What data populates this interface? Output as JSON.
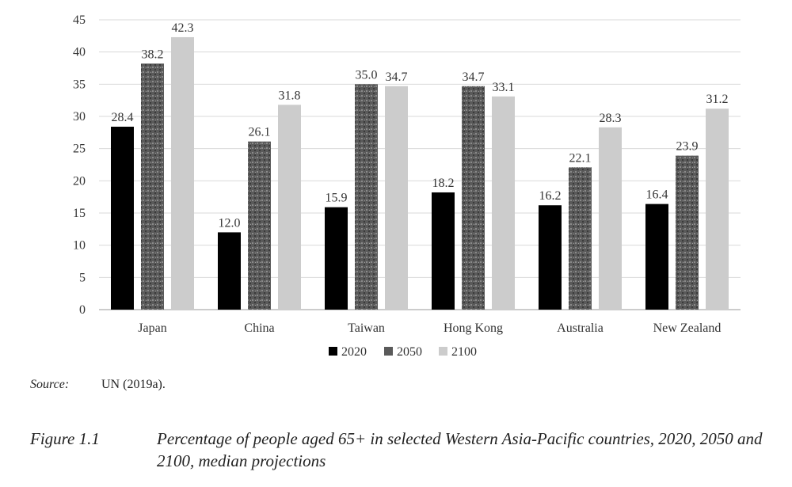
{
  "chart_data": {
    "type": "bar",
    "categories": [
      "Japan",
      "China",
      "Taiwan",
      "Hong Kong",
      "Australia",
      "New Zealand"
    ],
    "series": [
      {
        "name": "2020",
        "values": [
          28.4,
          12.0,
          15.9,
          18.2,
          16.2,
          16.4
        ],
        "labels": [
          "28.4",
          "12.0",
          "15.9",
          "18.2",
          "16.2",
          "16.4"
        ],
        "color": "#000000"
      },
      {
        "name": "2050",
        "values": [
          38.2,
          26.1,
          35.0,
          34.7,
          22.1,
          23.9
        ],
        "labels": [
          "38.2",
          "26.1",
          "35.0",
          "34.7",
          "22.1",
          "23.9"
        ],
        "color": "#5a5a5a"
      },
      {
        "name": "2100",
        "values": [
          42.3,
          31.8,
          34.7,
          33.1,
          28.3,
          31.2
        ],
        "labels": [
          "42.3",
          "31.8",
          "34.7",
          "33.1",
          "28.3",
          "31.2"
        ],
        "color": "#cccccc"
      }
    ],
    "ylim": [
      0,
      45
    ],
    "yticks": [
      "0",
      "5",
      "10",
      "15",
      "20",
      "25",
      "30",
      "35",
      "40",
      "45"
    ],
    "grid": true,
    "legend_position": "bottom"
  },
  "source": {
    "label": "Source:",
    "text": "UN (2019a)."
  },
  "caption": {
    "number": "Figure 1.1",
    "text": "Percentage of people aged 65+ in selected Western Asia-Pacific countries, 2020, 2050 and 2100, median projections"
  }
}
